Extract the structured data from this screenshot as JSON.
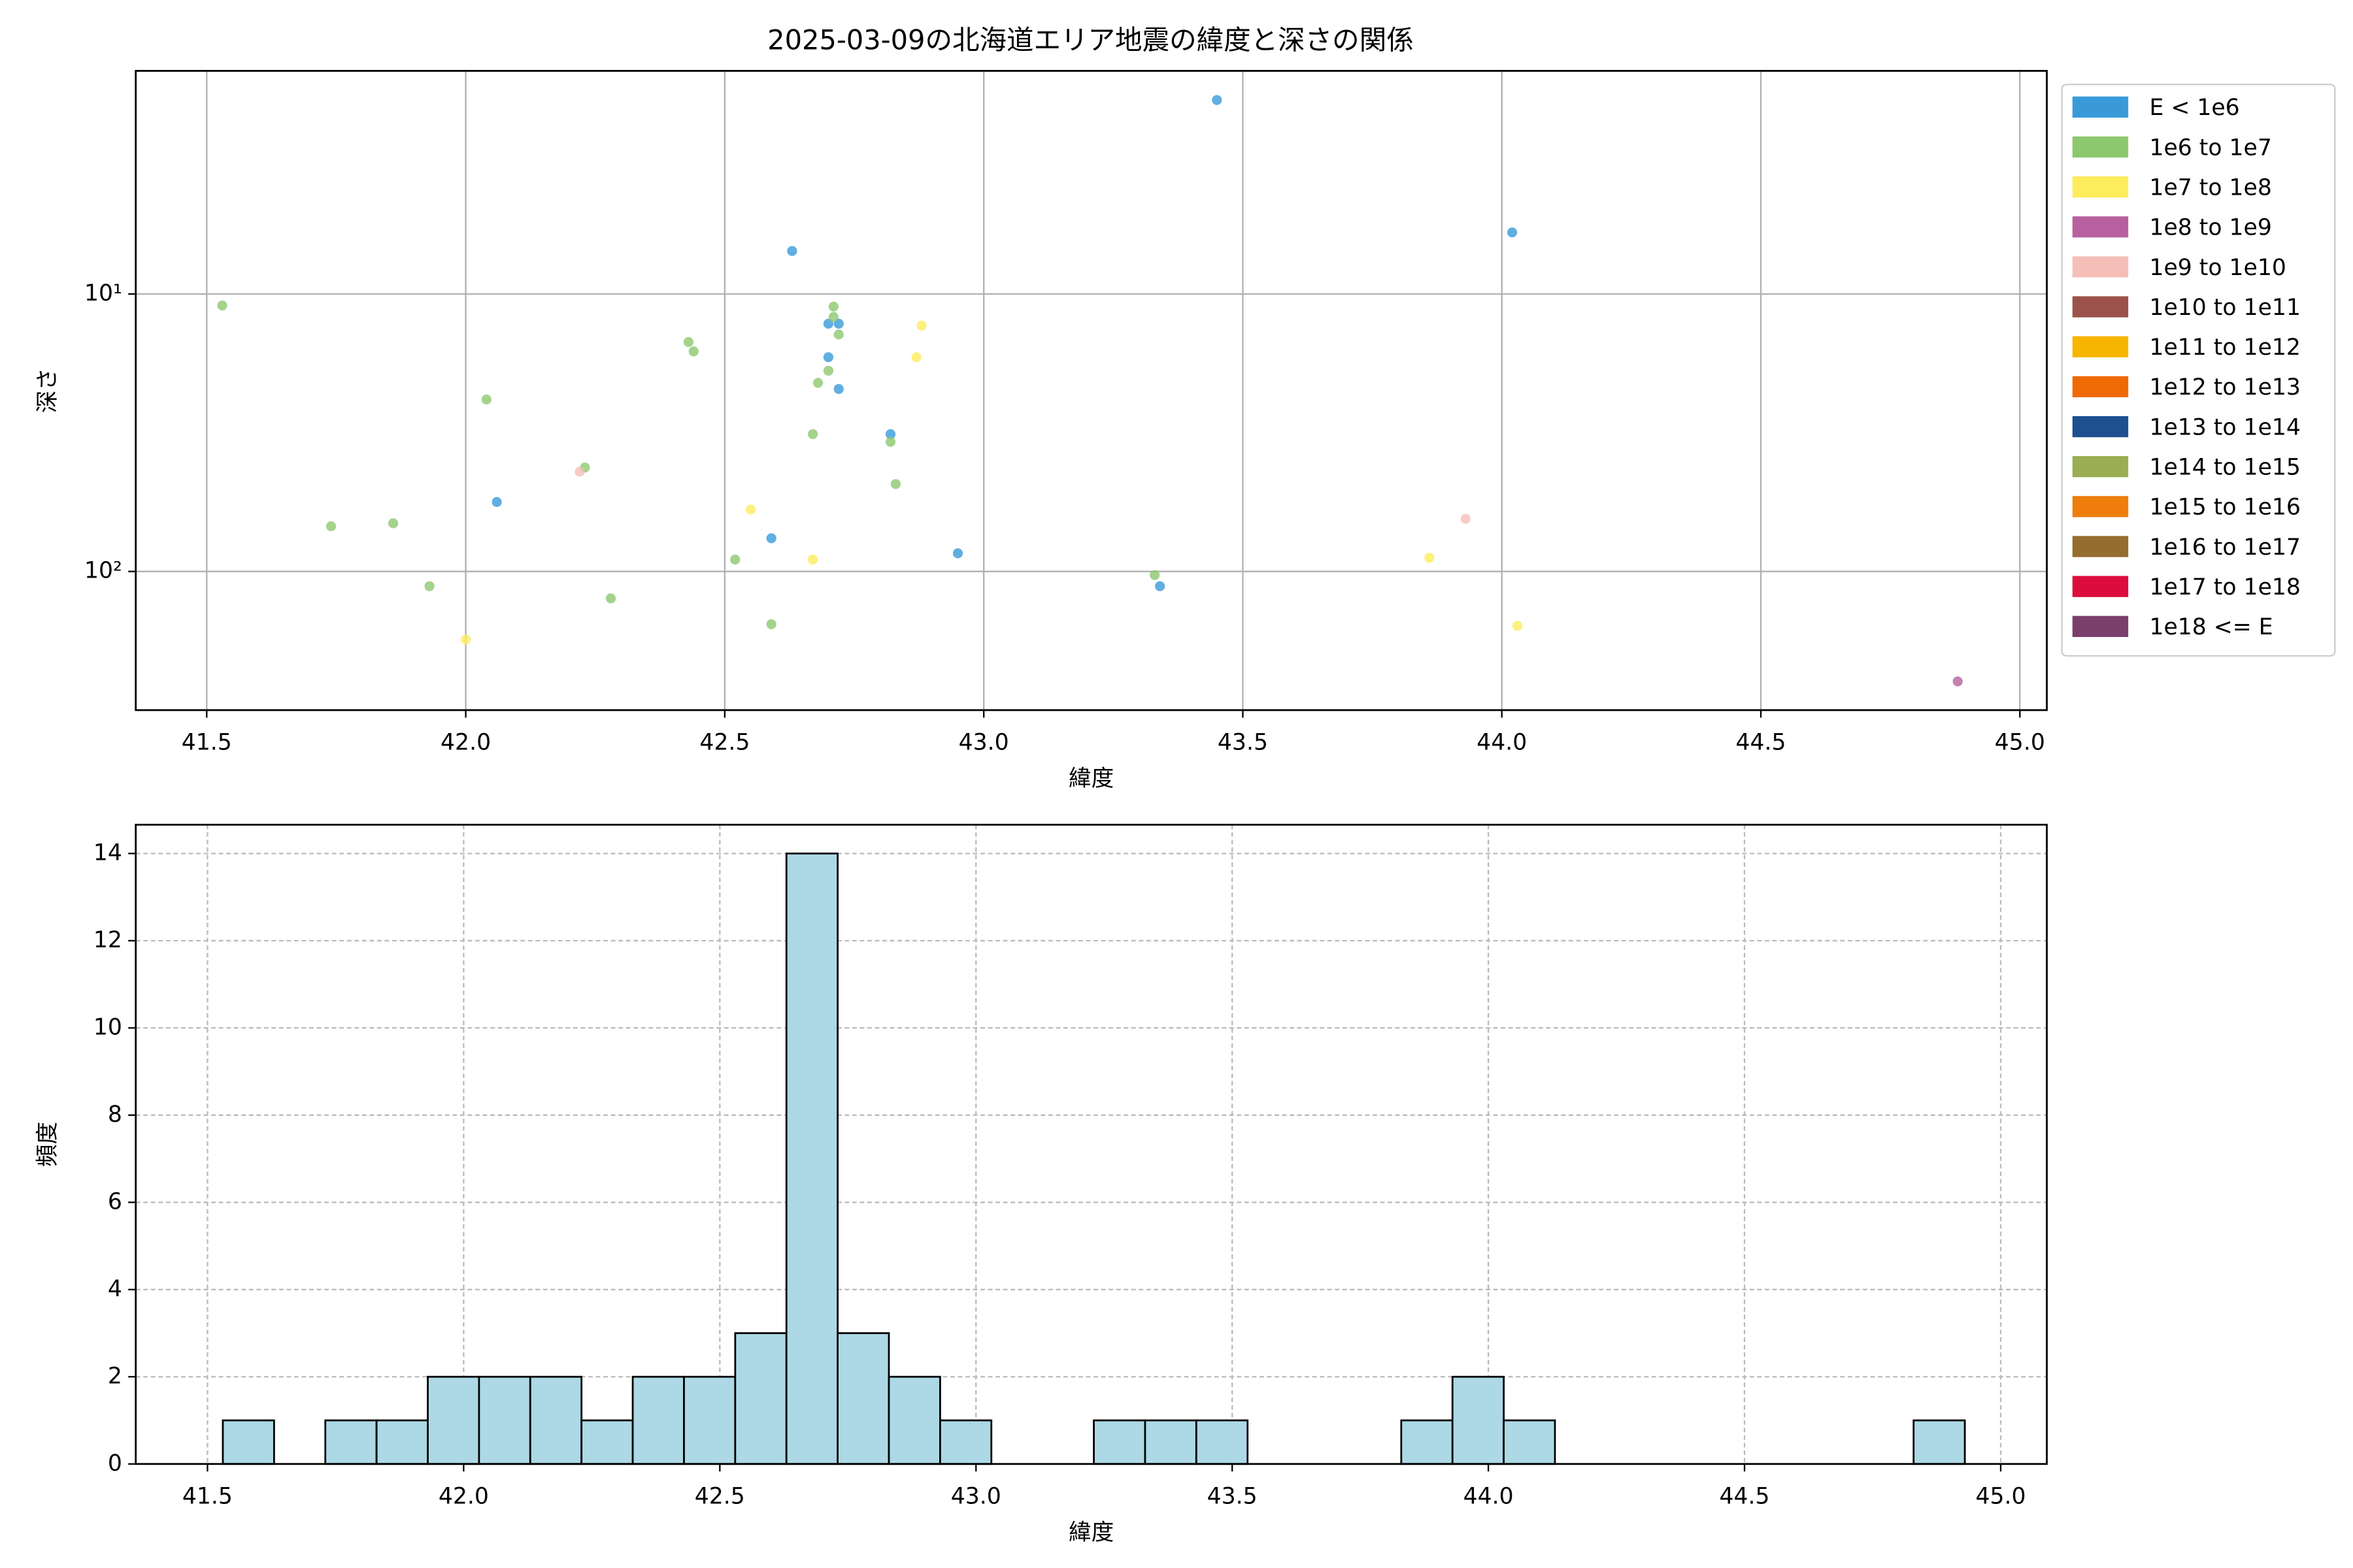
{
  "chart_data": [
    {
      "type": "scatter",
      "title": "2025-03-09の北海道エリア地震の緯度と深さの関係",
      "xlabel": "緯度",
      "ylabel": "深さ",
      "yscale": "log",
      "y_inverted": true,
      "xlim": [
        41.363,
        45.052
      ],
      "ylim": [
        1.57,
        316
      ],
      "xticks": [
        41.5,
        {
          "value": 42,
          "label": "42.0"
        },
        42.5,
        {
          "value": 43,
          "label": "43.0"
        },
        43.5,
        {
          "value": 44,
          "label": "44.0"
        },
        44.5,
        {
          "value": 45,
          "label": "45.0"
        }
      ],
      "yticks": [
        {
          "value": 10,
          "label": "10¹"
        },
        {
          "value": 100,
          "label": "10²"
        }
      ],
      "grid": true,
      "grid_style": "solid",
      "legend": "outside right",
      "series": [
        {
          "name": "E < 1e6",
          "color": "#3a9ad9",
          "x": [
            43.45,
            42.63,
            44.02,
            42.7,
            42.72,
            42.7,
            42.72,
            42.82,
            42.06,
            42.59,
            42.95,
            43.34
          ],
          "values": [
            2.0,
            7.0,
            6.0,
            12.8,
            12.8,
            16.9,
            22.0,
            32.0,
            56.2,
            75.9,
            86.0,
            113
          ]
        },
        {
          "name": "1e6 to 1e7",
          "color": "#8dc86f",
          "x": [
            41.53,
            42.43,
            42.44,
            42.71,
            42.71,
            42.72,
            42.7,
            42.68,
            42.04,
            42.67,
            42.82,
            42.23,
            42.83,
            41.74,
            41.86,
            41.93,
            42.52,
            43.33,
            42.28,
            42.59
          ],
          "values": [
            11.0,
            14.9,
            16.1,
            11.1,
            12.1,
            14.0,
            18.9,
            20.9,
            24.0,
            32.0,
            34.1,
            42.2,
            48.4,
            68.7,
            67.0,
            113,
            90.6,
            103,
            125,
            155
          ]
        },
        {
          "name": "1e7 to 1e8",
          "color": "#fdec5c",
          "x": [
            42.88,
            42.87,
            42.55,
            42.67,
            43.86,
            44.03,
            42.0
          ],
          "values": [
            13.0,
            16.9,
            59.8,
            90.6,
            89.3,
            157,
            176
          ]
        },
        {
          "name": "1e8 to 1e9",
          "color": "#b8609f",
          "x": [
            44.88
          ],
          "values": [
            249
          ]
        },
        {
          "name": "1e9 to 1e10",
          "color": "#f5bfb8",
          "x": [
            42.22,
            43.93
          ],
          "values": [
            43.7,
            64.6
          ]
        },
        {
          "name": "1e10 to 1e11",
          "color": "#9b524b",
          "x": [],
          "values": []
        },
        {
          "name": "1e11 to 1e12",
          "color": "#f7b500",
          "x": [],
          "values": []
        },
        {
          "name": "1e12 to 1e13",
          "color": "#ef6a05",
          "x": [],
          "values": []
        },
        {
          "name": "1e13 to 1e14",
          "color": "#1d4f91",
          "x": [],
          "values": []
        },
        {
          "name": "1e14 to 1e15",
          "color": "#9aad52",
          "x": [],
          "values": []
        },
        {
          "name": "1e15 to 1e16",
          "color": "#ef7d0c",
          "x": [],
          "values": []
        },
        {
          "name": "1e16 to 1e17",
          "color": "#956d2f",
          "x": [],
          "values": []
        },
        {
          "name": "1e17 to 1e18",
          "color": "#dc0d3c",
          "x": [],
          "values": []
        },
        {
          "name": "1e18 <= E",
          "color": "#7a3f6d",
          "x": [],
          "values": []
        }
      ]
    },
    {
      "type": "histogram",
      "xlabel": "緯度",
      "ylabel": "頻度",
      "color": "#add8e6",
      "xlim": [
        41.36,
        45.09
      ],
      "ylim": [
        0,
        14.66
      ],
      "xticks": [
        41.5,
        {
          "value": 42,
          "label": "42.0"
        },
        42.5,
        {
          "value": 43,
          "label": "43.0"
        },
        43.5,
        {
          "value": 44,
          "label": "44.0"
        },
        44.5,
        {
          "value": 45,
          "label": "45.0"
        }
      ],
      "yticks": [
        0,
        2,
        4,
        6,
        8,
        10,
        12,
        14
      ],
      "grid": true,
      "grid_style": "dashed",
      "bins": [
        41.53,
        41.63,
        41.73,
        41.83,
        41.93,
        42.03,
        42.13,
        42.23,
        42.33,
        42.43,
        42.53,
        42.63,
        42.73,
        42.83,
        42.93,
        43.03,
        43.13,
        43.23,
        43.33,
        43.43,
        43.53,
        43.63,
        43.73,
        43.83,
        43.93,
        44.03,
        44.13,
        44.23,
        44.33,
        44.43,
        44.53,
        44.63,
        44.73,
        44.83,
        44.93
      ],
      "counts": [
        1,
        0,
        1,
        1,
        2,
        2,
        2,
        1,
        2,
        2,
        3,
        14,
        3,
        2,
        1,
        0,
        0,
        1,
        1,
        1,
        0,
        0,
        0,
        1,
        2,
        1,
        0,
        0,
        0,
        0,
        0,
        0,
        0,
        1
      ]
    }
  ]
}
